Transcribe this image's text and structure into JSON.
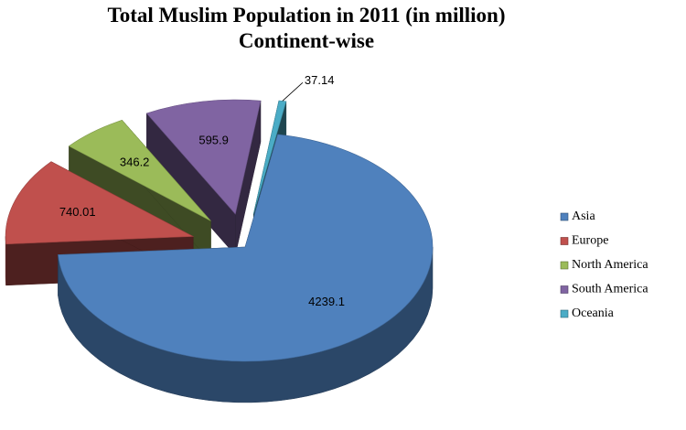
{
  "chart_data": {
    "type": "pie",
    "title": "Total Muslim Population in 2011 (in million)",
    "subtitle": "Continent-wise",
    "categories": [
      "Asia",
      "Europe",
      "North America",
      "South America",
      "Oceania"
    ],
    "values": [
      4239.1,
      740.01,
      346.2,
      595.9,
      37.14
    ],
    "colors": [
      "#4f81bd",
      "#c0504d",
      "#9bbb59",
      "#8064a2",
      "#4bacc6"
    ],
    "legend": "right"
  }
}
